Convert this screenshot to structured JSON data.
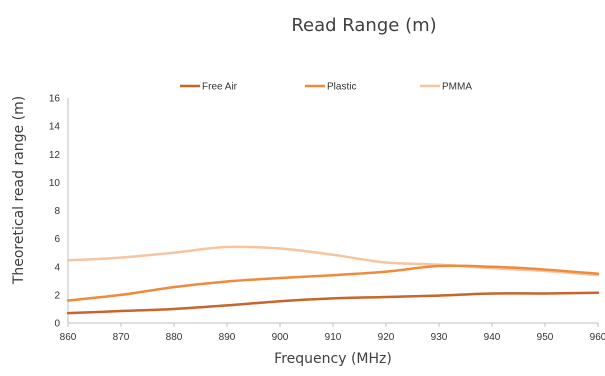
{
  "chart_data": {
    "type": "line",
    "title": "Read Range (m)",
    "xlabel": "Frequency (MHz)",
    "ylabel": "Theoretical read range (m)",
    "x": [
      860,
      870,
      880,
      890,
      900,
      910,
      920,
      930,
      940,
      950,
      960
    ],
    "xlim": [
      860,
      960
    ],
    "ylim": [
      0,
      16
    ],
    "x_ticks": [
      "860",
      "870",
      "880",
      "890",
      "900",
      "910",
      "920",
      "930",
      "940",
      "950",
      "960"
    ],
    "y_ticks": [
      "0",
      "2",
      "4",
      "6",
      "8",
      "10",
      "12",
      "14",
      "16"
    ],
    "grid": false,
    "legend_position": "top",
    "series": [
      {
        "name": "Free Air",
        "color": "#c8652a",
        "values": [
          0.7,
          0.85,
          1.0,
          1.25,
          1.55,
          1.75,
          1.85,
          1.95,
          2.1,
          2.1,
          2.15
        ]
      },
      {
        "name": "Plastic",
        "color": "#ef8a3c",
        "values": [
          1.6,
          2.0,
          2.55,
          2.95,
          3.2,
          3.4,
          3.65,
          4.05,
          4.0,
          3.8,
          3.5
        ]
      },
      {
        "name": "PMMA",
        "color": "#f5c4a0",
        "values": [
          4.45,
          4.65,
          5.0,
          5.4,
          5.3,
          4.85,
          4.3,
          4.15,
          3.9,
          3.7,
          3.4
        ]
      }
    ]
  }
}
